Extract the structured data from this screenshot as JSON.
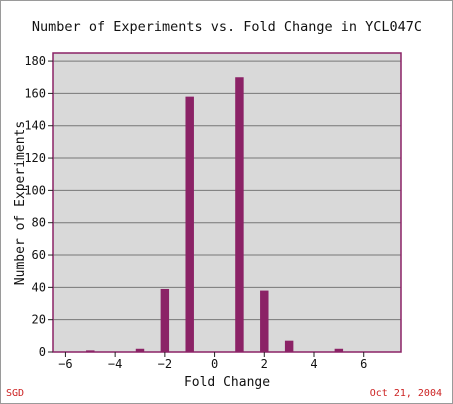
{
  "footer": {
    "source": "SGD",
    "date": "Oct 21, 2004"
  },
  "colors": {
    "bar": "#8b2266",
    "plot_background": "#d9d9d9",
    "plot_border": "#8b2266",
    "footer_text": "#cc2222"
  },
  "chart_data": {
    "type": "bar",
    "title": "Number of Experiments vs. Fold Change in YCL047C",
    "xlabel": "Fold Change",
    "ylabel": "Number of Experiments",
    "xlim": [
      -6.5,
      7.5
    ],
    "ylim": [
      0,
      185
    ],
    "xticks": [
      -6,
      -4,
      -2,
      0,
      2,
      4,
      6
    ],
    "yticks": [
      0,
      20,
      40,
      60,
      80,
      100,
      120,
      140,
      160,
      180
    ],
    "grid": true,
    "x": [
      -5,
      -3,
      -2,
      -1,
      1,
      2,
      3,
      5
    ],
    "values": [
      1,
      2,
      39,
      158,
      170,
      38,
      7,
      2
    ]
  }
}
